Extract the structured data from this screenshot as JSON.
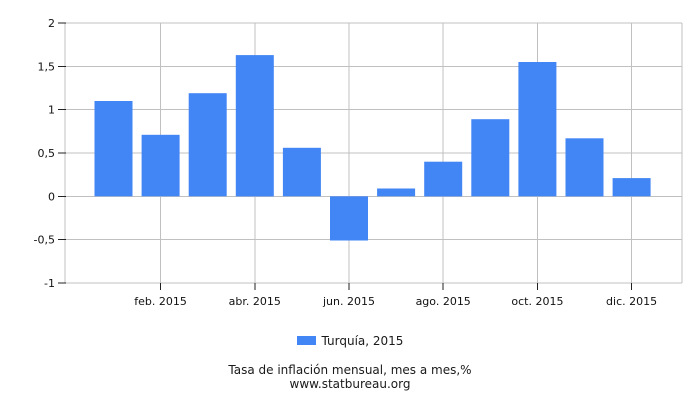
{
  "chart_data": {
    "type": "bar",
    "title": "Tasa de inflación mensual, mes a mes,%",
    "subtitle": "www.statbureau.org",
    "legend_label": "Turquía, 2015",
    "legend_position": "bottom",
    "n_bars": 12,
    "series": [
      {
        "name": "Turquía, 2015",
        "values": [
          1.1,
          0.71,
          1.19,
          1.63,
          0.56,
          -0.51,
          0.09,
          0.4,
          0.89,
          1.55,
          0.67,
          0.21
        ]
      }
    ],
    "x_tick_labels": [
      "feb. 2015",
      "abr. 2015",
      "jun. 2015",
      "ago. 2015",
      "oct. 2015",
      "dic. 2015"
    ],
    "x_tick_month_indices": [
      1,
      3,
      5,
      7,
      9,
      11
    ],
    "y_tick_labels": [
      "2",
      "1,5",
      "1",
      "0,5",
      "0",
      "-0,5",
      "-1"
    ],
    "y_tick_values": [
      2,
      1.5,
      1,
      0.5,
      0,
      -0.5,
      -1
    ],
    "ylim": [
      -1,
      2
    ],
    "grid": true,
    "bar_color": "#4285f4"
  },
  "colors": {
    "bar": "#4285f4",
    "grid": "#c0c0c0",
    "tick": "#222222",
    "text": "#111111",
    "background": "#ffffff"
  }
}
